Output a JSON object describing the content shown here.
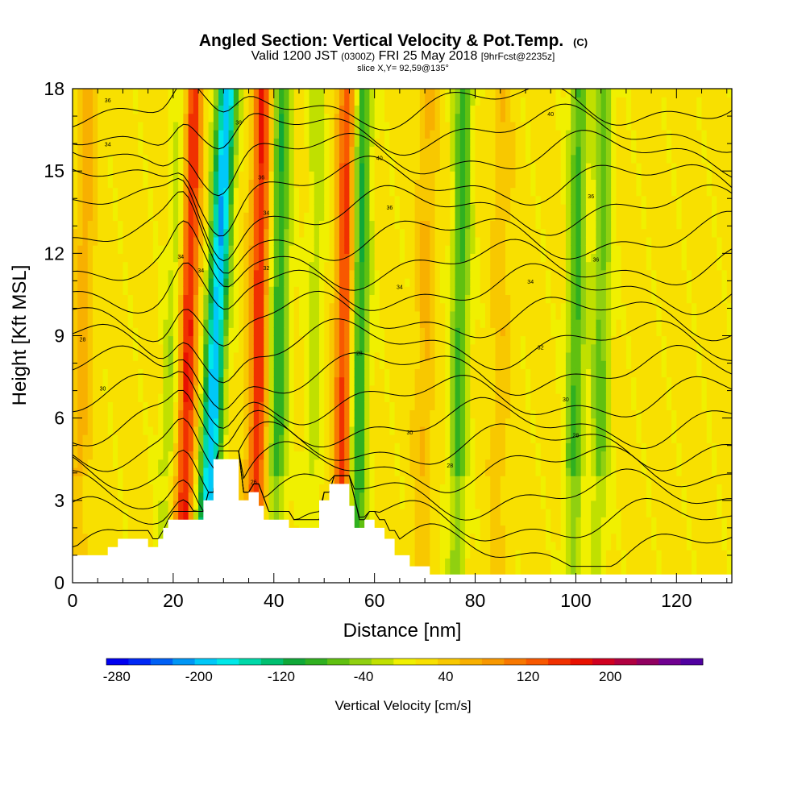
{
  "header": {
    "title_main": "Angled Section: Vertical Velocity & Pot.Temp.",
    "title_unit": "(C)",
    "valid_prefix": "Valid 1200 JST",
    "valid_z": "(0300Z)",
    "valid_date": "FRI 25 May 2018",
    "valid_fcst": "[9hrFcst@2235z]",
    "slice": "slice X,Y= 92,59@135°"
  },
  "chart_data": {
    "type": "heatmap",
    "xlabel": "Distance [nm]",
    "ylabel": "Height [Kft MSL]",
    "xlim": [
      0,
      131
    ],
    "ylim": [
      0,
      18
    ],
    "x_ticks": [
      "0",
      "20",
      "40",
      "60",
      "80",
      "100",
      "120"
    ],
    "y_ticks": [
      "0",
      "3",
      "6",
      "9",
      "12",
      "15",
      "18"
    ],
    "colorbar": {
      "label": "Vertical Velocity [cm/s]",
      "tick_labels": [
        "-280",
        "-200",
        "-120",
        "-40",
        "40",
        "120",
        "200"
      ],
      "tick_values": [
        -280,
        -200,
        -120,
        -40,
        40,
        120,
        200
      ],
      "range": [
        -290,
        290
      ],
      "colors": [
        "#0000f0",
        "#0028f5",
        "#0060f5",
        "#0096f5",
        "#00c8f8",
        "#00e8e8",
        "#00d8a8",
        "#00c070",
        "#10a838",
        "#30b020",
        "#60c010",
        "#90d010",
        "#c0e000",
        "#f0f000",
        "#f8e000",
        "#f8c800",
        "#f8b000",
        "#f89800",
        "#f87800",
        "#f85800",
        "#f03000",
        "#e81000",
        "#d00020",
        "#b00040",
        "#900060",
        "#700090",
        "#5000a0"
      ]
    },
    "updraft_bands": [
      {
        "x": 23,
        "strength": 150
      },
      {
        "x": 37,
        "strength": 140
      },
      {
        "x": 54,
        "strength": 130
      },
      {
        "x": 2,
        "strength": 50
      },
      {
        "x": 70,
        "strength": 40
      },
      {
        "x": 85,
        "strength": 30
      }
    ],
    "downdraft_bands": [
      {
        "x": 28.5,
        "strength": -220
      },
      {
        "x": 41,
        "strength": -110
      },
      {
        "x": 57,
        "strength": -120
      },
      {
        "x": 77,
        "strength": -100
      },
      {
        "x": 100,
        "strength": -100
      },
      {
        "x": 105,
        "strength": -80
      },
      {
        "x": 20,
        "strength": -50
      },
      {
        "x": 48,
        "strength": -40
      }
    ],
    "terrain": [
      [
        0,
        1
      ],
      [
        5,
        1
      ],
      [
        7,
        1.3
      ],
      [
        9,
        1.6
      ],
      [
        13,
        1.6
      ],
      [
        15,
        1.3
      ],
      [
        17,
        1.6
      ],
      [
        18,
        2
      ],
      [
        19,
        2.3
      ],
      [
        25,
        2.3
      ],
      [
        26,
        3
      ],
      [
        28,
        4.5
      ],
      [
        31,
        4.5
      ],
      [
        33,
        3
      ],
      [
        35,
        3.3
      ],
      [
        37,
        2.8
      ],
      [
        38,
        2.3
      ],
      [
        42,
        2.3
      ],
      [
        43,
        2
      ],
      [
        47,
        2
      ],
      [
        49,
        3
      ],
      [
        51,
        3.6
      ],
      [
        53,
        3.6
      ],
      [
        55,
        2.8
      ],
      [
        56,
        2
      ],
      [
        58,
        2.3
      ],
      [
        60,
        2
      ],
      [
        62,
        1.6
      ],
      [
        64,
        1
      ],
      [
        67,
        0.6
      ],
      [
        71,
        0.3
      ],
      [
        131,
        0.3
      ]
    ],
    "isentrope_labels": [
      {
        "x": 2,
        "y": 8.8,
        "text": "28"
      },
      {
        "x": 6,
        "y": 7,
        "text": "30"
      },
      {
        "x": 7,
        "y": 17.5,
        "text": "36"
      },
      {
        "x": 7,
        "y": 15.9,
        "text": "34"
      },
      {
        "x": 21.5,
        "y": 11.8,
        "text": "34"
      },
      {
        "x": 25.5,
        "y": 11.3,
        "text": "34"
      },
      {
        "x": 33,
        "y": 16.7,
        "text": "38"
      },
      {
        "x": 37.5,
        "y": 14.7,
        "text": "36"
      },
      {
        "x": 38.5,
        "y": 13.4,
        "text": "34"
      },
      {
        "x": 38.5,
        "y": 11.4,
        "text": "32"
      },
      {
        "x": 36,
        "y": 3.6,
        "text": "26"
      },
      {
        "x": 57,
        "y": 8.3,
        "text": "28"
      },
      {
        "x": 61,
        "y": 15.4,
        "text": "40"
      },
      {
        "x": 63,
        "y": 13.6,
        "text": "36"
      },
      {
        "x": 65,
        "y": 10.7,
        "text": "34"
      },
      {
        "x": 67,
        "y": 5.4,
        "text": "30"
      },
      {
        "x": 75,
        "y": 4.2,
        "text": "28"
      },
      {
        "x": 95,
        "y": 17,
        "text": "40"
      },
      {
        "x": 91,
        "y": 10.9,
        "text": "34"
      },
      {
        "x": 93,
        "y": 8.5,
        "text": "32"
      },
      {
        "x": 103,
        "y": 14,
        "text": "36"
      },
      {
        "x": 104,
        "y": 11.7,
        "text": "36"
      },
      {
        "x": 98,
        "y": 6.6,
        "text": "30"
      },
      {
        "x": 100,
        "y": 5.3,
        "text": "28"
      }
    ]
  }
}
